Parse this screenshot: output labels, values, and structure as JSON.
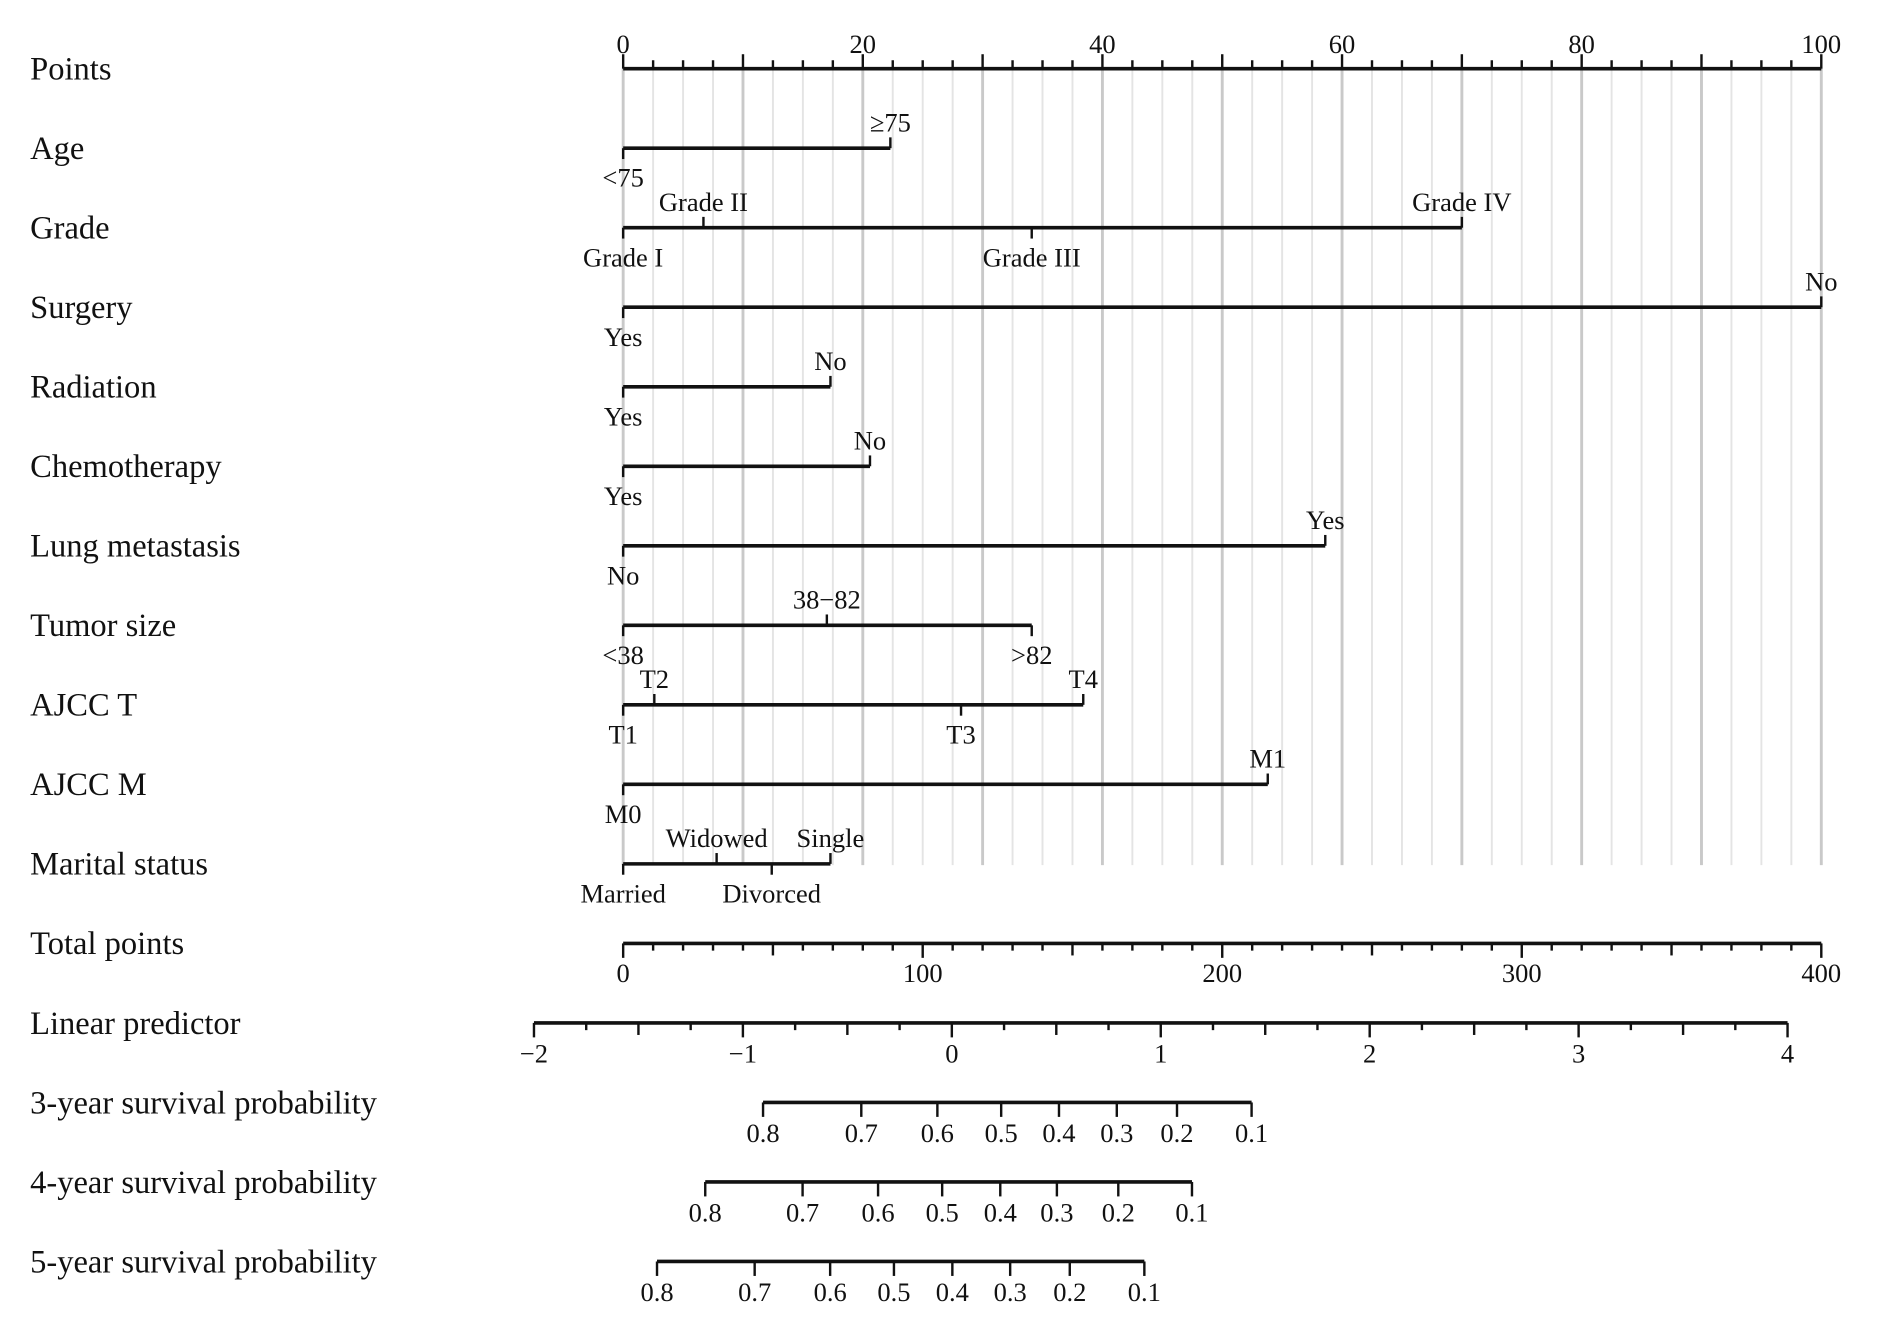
{
  "chart_data": {
    "type": "nomogram",
    "title": "",
    "points_axis": {
      "label": "Points",
      "range": [
        0,
        100
      ],
      "tick_labels": [
        "0",
        "20",
        "40",
        "60",
        "80",
        "100"
      ]
    },
    "variables": [
      {
        "name": "Age",
        "levels": [
          {
            "label": "<75",
            "points": 0,
            "pos": "below"
          },
          {
            "label": "≥75",
            "points": 22.3,
            "pos": "above"
          }
        ]
      },
      {
        "name": "Grade",
        "levels": [
          {
            "label": "Grade I",
            "points": 0,
            "pos": "below"
          },
          {
            "label": "Grade II",
            "points": 6.7,
            "pos": "above"
          },
          {
            "label": "Grade III",
            "points": 34.1,
            "pos": "below"
          },
          {
            "label": "Grade IV",
            "points": 70.0,
            "pos": "above"
          }
        ]
      },
      {
        "name": "Surgery",
        "levels": [
          {
            "label": "Yes",
            "points": 0,
            "pos": "below"
          },
          {
            "label": "No",
            "points": 100,
            "pos": "above"
          }
        ]
      },
      {
        "name": "Radiation",
        "levels": [
          {
            "label": "Yes",
            "points": 0,
            "pos": "below"
          },
          {
            "label": "No",
            "points": 17.3,
            "pos": "above"
          }
        ]
      },
      {
        "name": "Chemotherapy",
        "levels": [
          {
            "label": "Yes",
            "points": 0,
            "pos": "below"
          },
          {
            "label": "No",
            "points": 20.6,
            "pos": "above"
          }
        ]
      },
      {
        "name": "Lung metastasis",
        "levels": [
          {
            "label": "No",
            "points": 0,
            "pos": "below"
          },
          {
            "label": "Yes",
            "points": 58.6,
            "pos": "above"
          }
        ]
      },
      {
        "name": "Tumor size",
        "levels": [
          {
            "label": "<38",
            "points": 0,
            "pos": "below"
          },
          {
            "label": "38−82",
            "points": 17.0,
            "pos": "above"
          },
          {
            "label": ">82",
            "points": 34.1,
            "pos": "below"
          }
        ]
      },
      {
        "name": "AJCC T",
        "levels": [
          {
            "label": "T1",
            "points": 0,
            "pos": "below"
          },
          {
            "label": "T2",
            "points": 2.6,
            "pos": "above"
          },
          {
            "label": "T3",
            "points": 28.2,
            "pos": "below"
          },
          {
            "label": "T4",
            "points": 38.4,
            "pos": "above"
          }
        ]
      },
      {
        "name": "AJCC M",
        "levels": [
          {
            "label": "M0",
            "points": 0,
            "pos": "below"
          },
          {
            "label": "M1",
            "points": 53.8,
            "pos": "above"
          }
        ]
      },
      {
        "name": "Marital status",
        "levels": [
          {
            "label": "Married",
            "points": 0,
            "pos": "below"
          },
          {
            "label": "Widowed",
            "points": 7.8,
            "pos": "above"
          },
          {
            "label": "Divorced",
            "points": 12.4,
            "pos": "below"
          },
          {
            "label": "Single",
            "points": 17.3,
            "pos": "above"
          }
        ]
      }
    ],
    "total_points_axis": {
      "label": "Total points",
      "range": [
        0,
        400
      ],
      "tick_labels": [
        "0",
        "100",
        "200",
        "300",
        "400"
      ]
    },
    "linear_predictor_axis": {
      "label": "Linear predictor",
      "range": [
        -2,
        4
      ],
      "tick_labels": [
        "−2",
        "−1",
        "0",
        "1",
        "2",
        "3",
        "4"
      ]
    },
    "survival_axes": [
      {
        "label": "3-year survival probability",
        "ticks": [
          {
            "p": "0.8",
            "total_points": 46.7
          },
          {
            "p": "0.7",
            "total_points": 79.5
          },
          {
            "p": "0.6",
            "total_points": 104.9
          },
          {
            "p": "0.5",
            "total_points": 126.2
          },
          {
            "p": "0.4",
            "total_points": 145.5
          },
          {
            "p": "0.3",
            "total_points": 164.8
          },
          {
            "p": "0.2",
            "total_points": 184.9
          },
          {
            "p": "0.1",
            "total_points": 209.8
          }
        ]
      },
      {
        "label": "4-year survival probability",
        "ticks": [
          {
            "p": "0.8",
            "total_points": 27.4
          },
          {
            "p": "0.7",
            "total_points": 59.9
          },
          {
            "p": "0.6",
            "total_points": 85.1
          },
          {
            "p": "0.5",
            "total_points": 106.5
          },
          {
            "p": "0.4",
            "total_points": 125.9
          },
          {
            "p": "0.3",
            "total_points": 144.8
          },
          {
            "p": "0.2",
            "total_points": 165.3
          },
          {
            "p": "0.1",
            "total_points": 189.9
          }
        ]
      },
      {
        "label": "5-year survival probability",
        "ticks": [
          {
            "p": "0.8",
            "total_points": 11.3
          },
          {
            "p": "0.7",
            "total_points": 43.9
          },
          {
            "p": "0.6",
            "total_points": 69.1
          },
          {
            "p": "0.5",
            "total_points": 90.4
          },
          {
            "p": "0.4",
            "total_points": 109.9
          },
          {
            "p": "0.3",
            "total_points": 129.2
          },
          {
            "p": "0.2",
            "total_points": 149.1
          },
          {
            "p": "0.1",
            "total_points": 174.0
          }
        ]
      }
    ],
    "grid": true
  }
}
